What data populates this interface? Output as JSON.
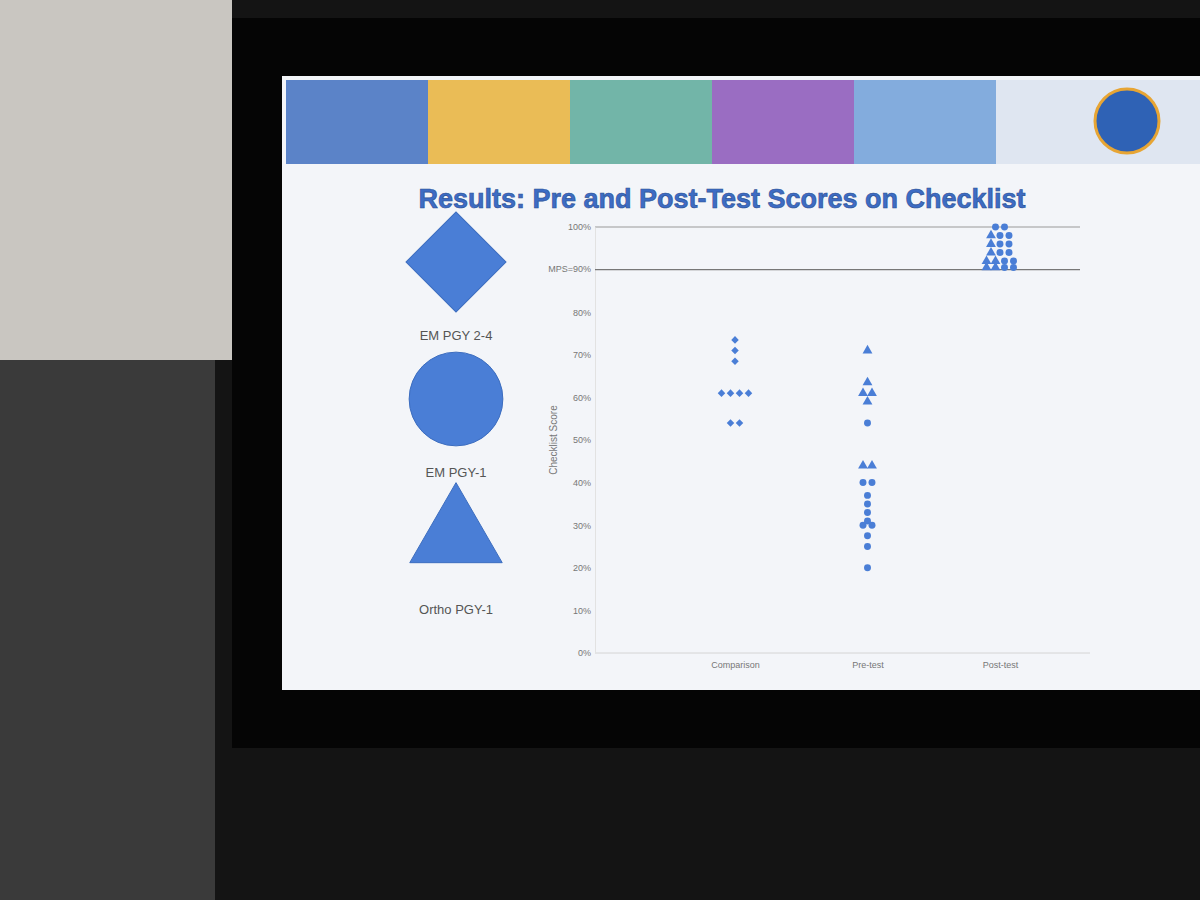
{
  "chart_data": {
    "type": "scatter",
    "title": "Results: Pre and Post-Test Scores on Checklist",
    "y_label": "Checklist Score",
    "categories": [
      "Comparison",
      "Pre-test",
      "Post-test"
    ],
    "ylim": [
      0,
      100
    ],
    "yticks": [
      {
        "value": 0,
        "label": "0%"
      },
      {
        "value": 10,
        "label": "10%"
      },
      {
        "value": 20,
        "label": "20%"
      },
      {
        "value": 30,
        "label": "30%"
      },
      {
        "value": 40,
        "label": "40%"
      },
      {
        "value": 50,
        "label": "50%"
      },
      {
        "value": 60,
        "label": "60%"
      },
      {
        "value": 70,
        "label": "70%"
      },
      {
        "value": 80,
        "label": "80%"
      },
      {
        "value": 100,
        "label": "100%"
      }
    ],
    "grid": false,
    "legend": "left",
    "reference_lines": [
      {
        "value": 90,
        "label": "MPS=90%"
      }
    ],
    "series": [
      {
        "name": "EM PGY 2-4",
        "marker": "diamond",
        "color": "#4a7ed6",
        "x": [
          "Comparison",
          "Comparison",
          "Comparison",
          "Comparison",
          "Comparison",
          "Comparison",
          "Comparison",
          "Comparison",
          "Comparison"
        ],
        "values": [
          73.5,
          71,
          68.5,
          61,
          61,
          61,
          61,
          54,
          54
        ]
      },
      {
        "name": "EM PGY-1",
        "marker": "circle",
        "color": "#4a7ed6",
        "x": [
          "Pre-test",
          "Pre-test",
          "Pre-test",
          "Pre-test",
          "Pre-test",
          "Pre-test",
          "Pre-test",
          "Pre-test",
          "Pre-test",
          "Pre-test",
          "Pre-test",
          "Pre-test",
          "Post-test",
          "Post-test",
          "Post-test",
          "Post-test",
          "Post-test",
          "Post-test",
          "Post-test",
          "Post-test",
          "Post-test",
          "Post-test",
          "Post-test",
          "Post-test"
        ],
        "values": [
          54,
          40,
          40,
          37,
          35,
          33,
          31,
          30,
          30,
          27.5,
          25,
          20,
          100,
          100,
          98,
          98,
          96,
          96,
          94,
          94,
          92,
          92,
          90.5,
          90.5
        ]
      },
      {
        "name": "Ortho PGY-1",
        "marker": "triangle",
        "color": "#4a7ed6",
        "x": [
          "Pre-test",
          "Pre-test",
          "Pre-test",
          "Pre-test",
          "Pre-test",
          "Pre-test",
          "Pre-test",
          "Post-test",
          "Post-test",
          "Post-test",
          "Post-test",
          "Post-test",
          "Post-test",
          "Post-test"
        ],
        "values": [
          71,
          63.5,
          61,
          61,
          59,
          44,
          44,
          98,
          96,
          94,
          92,
          92,
          90.5,
          90.5
        ]
      }
    ]
  }
}
